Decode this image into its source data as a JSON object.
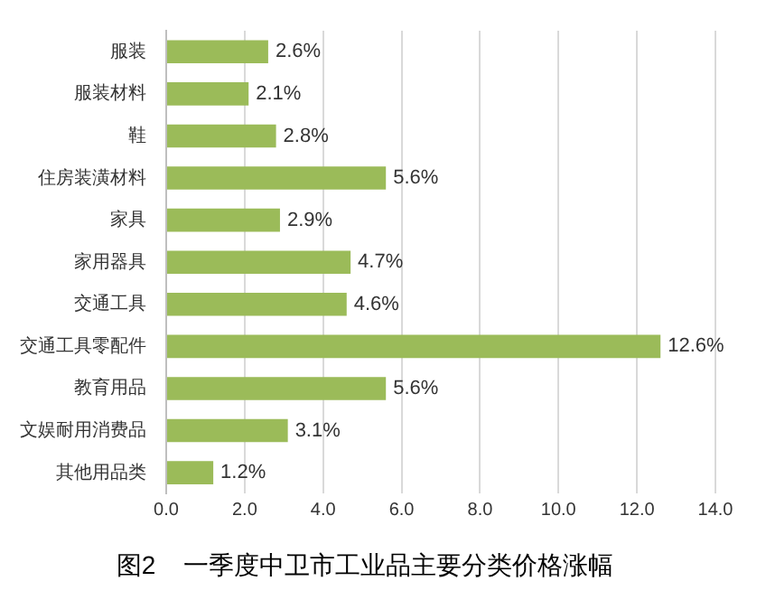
{
  "chart_data": {
    "type": "bar",
    "orientation": "horizontal",
    "title": "图2    一季度中卫市工业品主要分类价格涨幅",
    "categories": [
      "服装",
      "服装材料",
      "鞋",
      "住房装潢材料",
      "家具",
      "家用器具",
      "交通工具",
      "交通工具零配件",
      "教育用品",
      "文娱耐用消费品",
      "其他用品类"
    ],
    "values": [
      2.6,
      2.1,
      2.8,
      5.6,
      2.9,
      4.7,
      4.6,
      12.6,
      5.6,
      3.1,
      1.2
    ],
    "value_labels": [
      "2.6%",
      "2.1%",
      "2.8%",
      "5.6%",
      "2.9%",
      "4.7%",
      "4.6%",
      "12.6%",
      "5.6%",
      "3.1%",
      "1.2%"
    ],
    "color": "#9bbb59",
    "xlim": [
      0,
      14
    ],
    "xticks": [
      {
        "value": 0,
        "label": "0.0"
      },
      {
        "value": 2,
        "label": "2.0"
      },
      {
        "value": 4,
        "label": "4.0"
      },
      {
        "value": 6,
        "label": "6.0"
      },
      {
        "value": 8,
        "label": "8.0"
      },
      {
        "value": 10,
        "label": "10.0"
      },
      {
        "value": 12,
        "label": "12.0"
      },
      {
        "value": 14,
        "label": "14.0"
      }
    ],
    "grid": "x",
    "legend": false
  }
}
